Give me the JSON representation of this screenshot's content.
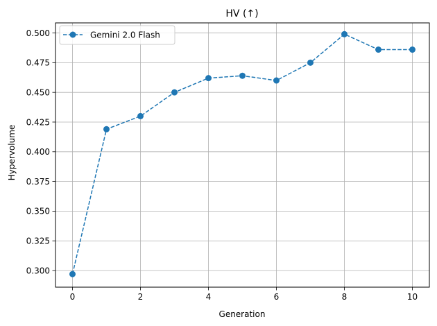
{
  "chart_data": {
    "type": "line",
    "title": "HV (↑)",
    "xlabel": "Generation",
    "ylabel": "Hypervolume",
    "xlim": [
      -0.5,
      10.5
    ],
    "ylim": [
      0.286,
      0.5085
    ],
    "xticks": [
      0,
      2,
      4,
      6,
      8,
      10
    ],
    "yticks": [
      0.3,
      0.325,
      0.35,
      0.375,
      0.4,
      0.425,
      0.45,
      0.475,
      0.5
    ],
    "ytick_labels": [
      "0.300",
      "0.325",
      "0.350",
      "0.375",
      "0.400",
      "0.425",
      "0.450",
      "0.475",
      "0.500"
    ],
    "grid": true,
    "legend_position": "top-left",
    "series": [
      {
        "name": "Gemini 2.0 Flash",
        "color": "#1f77b4",
        "line_style": "dashed",
        "marker": "circle",
        "x": [
          0,
          1,
          2,
          3,
          4,
          5,
          6,
          7,
          8,
          9,
          10
        ],
        "y": [
          0.297,
          0.419,
          0.43,
          0.45,
          0.462,
          0.464,
          0.46,
          0.475,
          0.499,
          0.486,
          0.486
        ]
      }
    ]
  }
}
